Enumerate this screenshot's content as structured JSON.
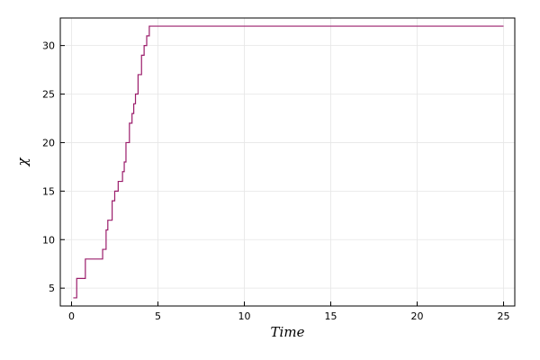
{
  "chart_data": {
    "type": "line",
    "xlabel": "Time",
    "ylabel": "χ",
    "xlim": [
      -0.65,
      25.65
    ],
    "ylim": [
      3.16,
      32.84
    ],
    "grid": true,
    "x_ticks": [
      0,
      5,
      10,
      15,
      20,
      25
    ],
    "y_ticks": [
      5,
      10,
      15,
      20,
      25,
      30
    ],
    "line_color": "#9b1d6b",
    "series": [
      {
        "step": "post",
        "points": [
          [
            0.1,
            4
          ],
          [
            0.3,
            6
          ],
          [
            0.8,
            8
          ],
          [
            1.8,
            9
          ],
          [
            2.0,
            11
          ],
          [
            2.1,
            12
          ],
          [
            2.35,
            14
          ],
          [
            2.5,
            15
          ],
          [
            2.7,
            16
          ],
          [
            2.95,
            17
          ],
          [
            3.05,
            18
          ],
          [
            3.15,
            20
          ],
          [
            3.35,
            22
          ],
          [
            3.5,
            23
          ],
          [
            3.6,
            24
          ],
          [
            3.7,
            25
          ],
          [
            3.85,
            27
          ],
          [
            4.05,
            29
          ],
          [
            4.2,
            30
          ],
          [
            4.35,
            31
          ],
          [
            4.5,
            32
          ],
          [
            4.6,
            32
          ],
          [
            25.0,
            32
          ]
        ]
      }
    ]
  }
}
